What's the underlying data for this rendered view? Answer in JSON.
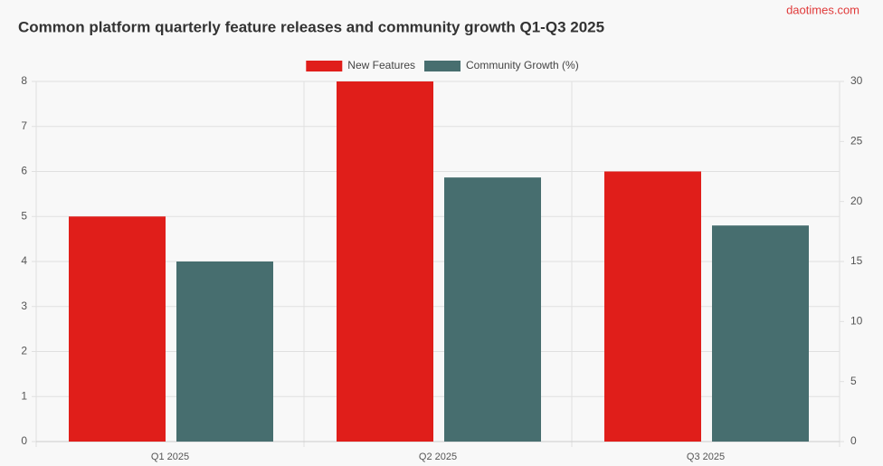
{
  "chart_data": {
    "type": "bar",
    "title": "Common platform quarterly feature releases and community growth Q1-Q3 2025",
    "watermark": "daotimes.com",
    "categories": [
      "Q1 2025",
      "Q2 2025",
      "Q3 2025"
    ],
    "series": [
      {
        "name": "New Features",
        "color": "#e01e1a",
        "values": [
          5,
          8,
          6
        ]
      },
      {
        "name": "Community Growth (%)",
        "color": "#476e6f",
        "values": [
          15,
          22,
          18
        ],
        "axis": "y2"
      }
    ],
    "ylim": [
      0,
      8
    ],
    "yticks": [
      0,
      1,
      2,
      3,
      4,
      5,
      6,
      7,
      8
    ],
    "y2lim": [
      0,
      30
    ],
    "y2ticks": [
      0,
      5,
      10,
      15,
      20,
      25,
      30
    ],
    "grid": true,
    "legend": "top"
  }
}
